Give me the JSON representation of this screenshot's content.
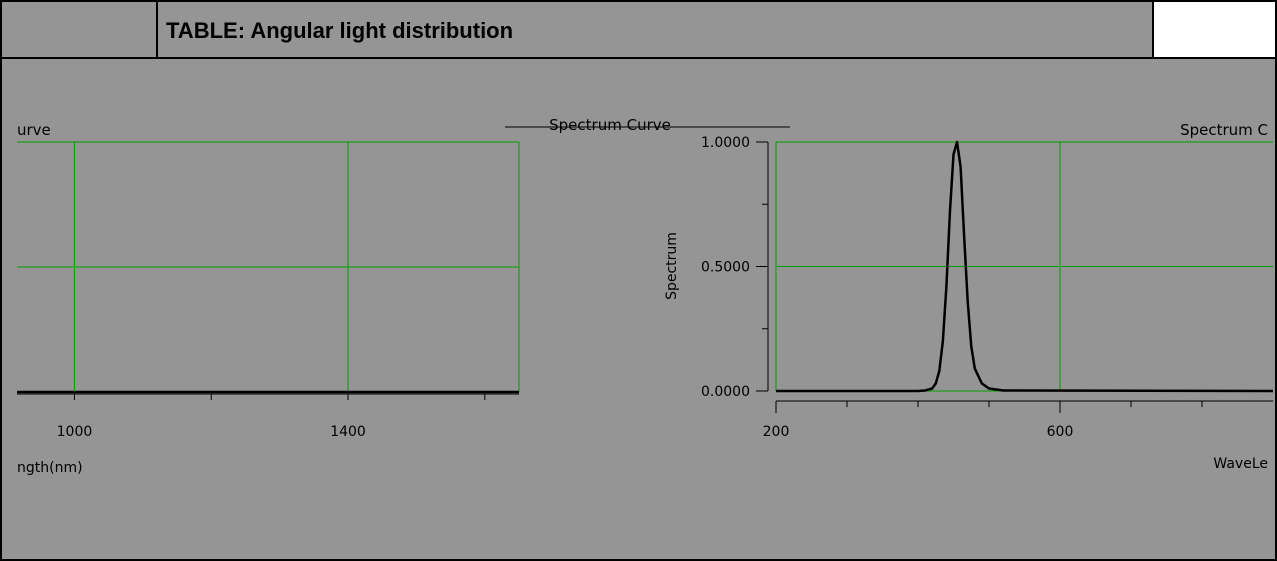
{
  "header": {
    "title": "TABLE: Angular light distribution"
  },
  "chart_data": [
    {
      "type": "line",
      "title": "Spectrum Curve",
      "title_visible_fragment": "urve",
      "xlabel": "Wavelength(nm)",
      "xlabel_visible_fragment": "ngth(nm)",
      "ylabel": "",
      "x_ticks": [
        "1000",
        "1400"
      ],
      "xlim": [
        916,
        1650
      ],
      "ylim": [
        0,
        1
      ],
      "grid": true,
      "series": [
        {
          "x": [
            916,
            1650
          ],
          "y": [
            0,
            0
          ]
        }
      ]
    },
    {
      "type": "line",
      "title": "Spectrum Curve",
      "title_visible_fragment": "Spectrum Curve",
      "title_visible_fragment_right": "Spectrum C",
      "xlabel": "WaveLength(nm)",
      "xlabel_visible_fragment": "WaveLe",
      "ylabel": "Spectrum",
      "x_ticks": [
        "200",
        "600"
      ],
      "y_ticks": [
        "0.0000",
        "0.5000",
        "1.0000"
      ],
      "xlim": [
        200,
        900
      ],
      "ylim": [
        0,
        1
      ],
      "grid": true,
      "series": [
        {
          "x": [
            200,
            400,
            410,
            420,
            425,
            430,
            435,
            440,
            445,
            450,
            455,
            460,
            465,
            470,
            475,
            480,
            490,
            500,
            520,
            900
          ],
          "y": [
            0,
            0,
            0.002,
            0.01,
            0.03,
            0.08,
            0.2,
            0.42,
            0.72,
            0.95,
            1.0,
            0.9,
            0.62,
            0.36,
            0.18,
            0.09,
            0.03,
            0.01,
            0.002,
            0
          ]
        }
      ]
    }
  ],
  "colors": {
    "panel_bg": "#959595",
    "grid": "#00a000",
    "line": "#000000"
  }
}
